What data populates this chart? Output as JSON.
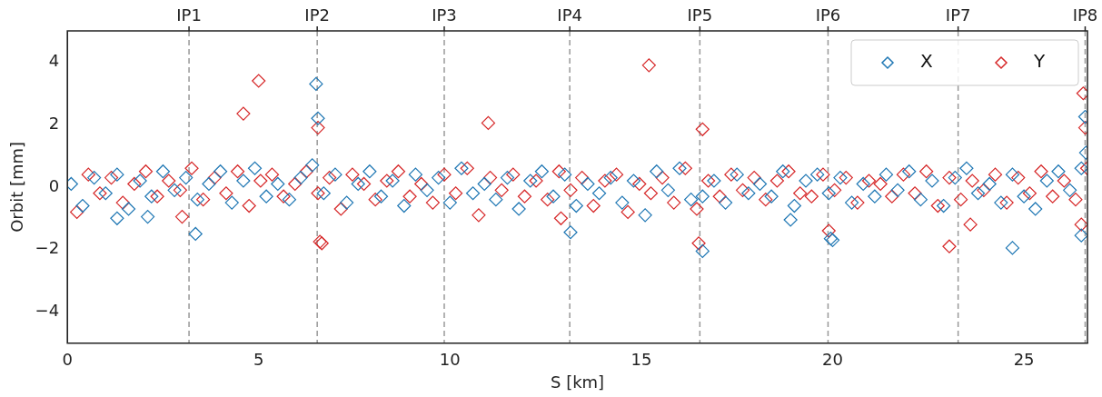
{
  "chart_data": {
    "type": "scatter",
    "xlabel": "S [km]",
    "ylabel": "Orbit [mm]",
    "xlim": [
      0,
      26.66
    ],
    "xticks": [
      0,
      5,
      10,
      15,
      20,
      25
    ],
    "ylim": [
      -5,
      5
    ],
    "yticks": [
      -4,
      -2,
      0,
      2,
      4
    ],
    "grid": false,
    "legend": "top right",
    "marker": "diamond",
    "ref_lines": [
      {
        "axis": "x",
        "value": 3.18,
        "label": "IP1",
        "color": "#999999",
        "line_style": "dashed"
      },
      {
        "axis": "x",
        "value": 6.53,
        "label": "IP2",
        "color": "#999999",
        "line_style": "dashed"
      },
      {
        "axis": "x",
        "value": 9.85,
        "label": "IP3",
        "color": "#999999",
        "line_style": "dashed"
      },
      {
        "axis": "x",
        "value": 13.13,
        "label": "IP4",
        "color": "#999999",
        "line_style": "dashed"
      },
      {
        "axis": "x",
        "value": 16.53,
        "label": "IP5",
        "color": "#999999",
        "line_style": "dashed"
      },
      {
        "axis": "x",
        "value": 19.88,
        "label": "IP6",
        "color": "#999999",
        "line_style": "dashed"
      },
      {
        "axis": "x",
        "value": 23.28,
        "label": "IP7",
        "color": "#999999",
        "line_style": "dashed"
      },
      {
        "axis": "x",
        "value": 26.6,
        "label": "IP8",
        "color": "#999999",
        "line_style": "dashed"
      }
    ],
    "series": [
      {
        "name": "X",
        "color": "#1f77b4",
        "x": [
          0.1,
          0.4,
          0.7,
          1.0,
          1.3,
          1.6,
          1.9,
          2.2,
          2.5,
          2.8,
          3.1,
          3.4,
          3.7,
          4.0,
          4.3,
          4.6,
          4.9,
          5.2,
          5.5,
          5.8,
          6.1,
          6.4,
          6.7,
          7.0,
          7.3,
          7.6,
          7.9,
          8.2,
          8.5,
          8.8,
          9.1,
          9.4,
          9.7,
          10.0,
          10.3,
          10.6,
          10.9,
          11.2,
          11.5,
          11.8,
          12.1,
          12.4,
          12.7,
          13.0,
          13.3,
          13.6,
          13.9,
          14.2,
          14.5,
          14.8,
          15.1,
          15.4,
          15.7,
          16.0,
          16.3,
          16.6,
          16.9,
          17.2,
          17.5,
          17.8,
          18.1,
          18.4,
          18.7,
          19.0,
          19.3,
          19.6,
          19.9,
          20.2,
          20.5,
          20.8,
          21.1,
          21.4,
          21.7,
          22.0,
          22.3,
          22.6,
          22.9,
          23.2,
          23.5,
          23.8,
          24.1,
          24.4,
          24.7,
          25.0,
          25.3,
          25.6,
          25.9,
          26.2,
          26.5,
          6.5,
          6.55,
          3.35,
          13.15,
          16.6,
          19.95,
          20.0,
          24.7,
          26.6,
          26.62,
          26.5,
          18.9,
          2.1,
          1.3
        ],
        "values": [
          0.1,
          -0.6,
          0.3,
          -0.2,
          0.4,
          -0.7,
          0.2,
          -0.3,
          0.5,
          -0.1,
          0.3,
          -0.4,
          0.1,
          0.5,
          -0.5,
          0.2,
          0.6,
          -0.3,
          0.1,
          -0.4,
          0.3,
          0.7,
          -0.2,
          0.4,
          -0.5,
          0.1,
          0.5,
          -0.3,
          0.2,
          -0.6,
          0.4,
          -0.1,
          0.3,
          -0.5,
          0.6,
          -0.2,
          0.1,
          -0.4,
          0.3,
          -0.7,
          0.2,
          0.5,
          -0.3,
          0.4,
          -0.6,
          0.1,
          -0.2,
          0.3,
          -0.5,
          0.2,
          -0.9,
          0.5,
          -0.1,
          0.6,
          -0.4,
          -0.3,
          0.2,
          -0.5,
          0.4,
          -0.2,
          0.1,
          -0.3,
          0.5,
          -0.6,
          0.2,
          0.4,
          -0.2,
          0.3,
          -0.5,
          0.1,
          -0.3,
          0.4,
          -0.1,
          0.5,
          -0.4,
          0.2,
          -0.6,
          0.3,
          0.6,
          -0.2,
          0.1,
          -0.5,
          0.4,
          -0.3,
          -0.7,
          0.2,
          0.5,
          -0.1,
          0.6,
          3.3,
          2.2,
          -1.5,
          -1.45,
          -2.05,
          -1.65,
          -1.7,
          -1.95,
          2.25,
          1.1,
          -1.55,
          -1.05,
          -0.95,
          -1.0
        ]
      },
      {
        "name": "Y",
        "color": "#d62728",
        "x": [
          0.25,
          0.55,
          0.85,
          1.15,
          1.45,
          1.75,
          2.05,
          2.35,
          2.65,
          2.95,
          3.25,
          3.55,
          3.85,
          4.15,
          4.45,
          4.75,
          5.05,
          5.35,
          5.65,
          5.95,
          6.25,
          6.55,
          6.85,
          7.15,
          7.45,
          7.75,
          8.05,
          8.35,
          8.65,
          8.95,
          9.25,
          9.55,
          9.85,
          10.15,
          10.45,
          10.75,
          11.05,
          11.35,
          11.65,
          11.95,
          12.25,
          12.55,
          12.85,
          13.15,
          13.45,
          13.75,
          14.05,
          14.35,
          14.65,
          14.95,
          15.25,
          15.55,
          15.85,
          16.15,
          16.45,
          16.75,
          17.05,
          17.35,
          17.65,
          17.95,
          18.25,
          18.55,
          18.85,
          19.15,
          19.45,
          19.75,
          20.05,
          20.35,
          20.65,
          20.95,
          21.25,
          21.55,
          21.85,
          22.15,
          22.45,
          22.75,
          23.05,
          23.35,
          23.65,
          23.95,
          24.25,
          24.55,
          24.85,
          25.15,
          25.45,
          25.75,
          26.05,
          26.35,
          26.65,
          4.6,
          5.0,
          6.55,
          6.6,
          6.65,
          11.0,
          15.2,
          16.6,
          16.5,
          23.05,
          23.6,
          26.55,
          26.6,
          26.5,
          3.0,
          19.9,
          12.9
        ],
        "values": [
          -0.8,
          0.4,
          -0.2,
          0.3,
          -0.5,
          0.1,
          0.5,
          -0.3,
          0.2,
          -0.1,
          0.6,
          -0.4,
          0.3,
          -0.2,
          0.5,
          -0.6,
          0.2,
          0.4,
          -0.3,
          0.1,
          0.5,
          -0.2,
          0.3,
          -0.7,
          0.4,
          0.1,
          -0.4,
          0.2,
          0.5,
          -0.3,
          0.1,
          -0.5,
          0.4,
          -0.2,
          0.6,
          -0.9,
          0.3,
          -0.1,
          0.4,
          -0.3,
          0.2,
          -0.4,
          0.5,
          -0.1,
          0.3,
          -0.6,
          0.2,
          0.4,
          -0.8,
          0.1,
          -0.2,
          0.3,
          -0.5,
          0.6,
          -0.7,
          0.2,
          -0.3,
          0.4,
          -0.1,
          0.3,
          -0.4,
          0.2,
          0.5,
          -0.2,
          -0.3,
          0.4,
          -0.1,
          0.3,
          -0.5,
          0.2,
          0.1,
          -0.3,
          0.4,
          -0.2,
          0.5,
          -0.6,
          0.3,
          -0.4,
          0.2,
          -0.1,
          0.4,
          -0.5,
          0.3,
          -0.2,
          0.5,
          -0.3,
          0.2,
          -0.4,
          0.6,
          2.35,
          3.4,
          1.9,
          -1.75,
          -1.8,
          2.05,
          3.9,
          1.85,
          -1.8,
          -1.9,
          -1.2,
          3.0,
          1.9,
          -1.2,
          -0.95,
          -1.4,
          -1.0
        ]
      }
    ]
  }
}
